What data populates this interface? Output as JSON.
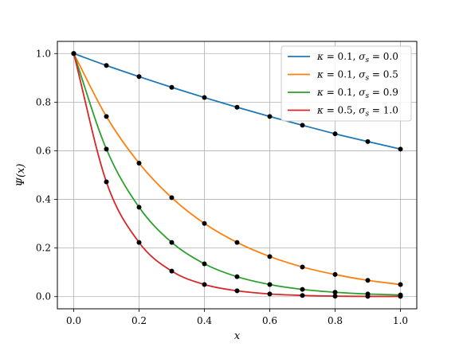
{
  "chart_data": {
    "type": "line",
    "xlabel": "x",
    "ylabel": "Ψ(x)",
    "xlim": [
      -0.05,
      1.05
    ],
    "ylim": [
      -0.05,
      1.05
    ],
    "xticks": [
      0.0,
      0.2,
      0.4,
      0.6,
      0.8,
      1.0
    ],
    "yticks": [
      0.0,
      0.2,
      0.4,
      0.6,
      0.8,
      1.0
    ],
    "xtick_labels": [
      "0.0",
      "0.2",
      "0.4",
      "0.6",
      "0.8",
      "1.0"
    ],
    "ytick_labels": [
      "0.0",
      "0.2",
      "0.4",
      "0.6",
      "0.8",
      "1.0"
    ],
    "grid": true,
    "legend_position": "top-right",
    "marker_x": [
      0.0,
      0.1,
      0.2,
      0.3,
      0.4,
      0.5,
      0.6,
      0.7,
      0.8,
      0.9,
      1.0
    ],
    "series": [
      {
        "name": "κ = 0.1, σs = 0.0",
        "legend": {
          "kappa": "0.1",
          "sigma": "0.0"
        },
        "color": "#1f77b4",
        "marker_y": [
          1.0,
          0.951,
          0.905,
          0.861,
          0.819,
          0.779,
          0.741,
          0.705,
          0.67,
          0.638,
          0.607
        ]
      },
      {
        "name": "κ = 0.1, σs = 0.5",
        "legend": {
          "kappa": "0.1",
          "sigma": "0.5"
        },
        "color": "#ff7f0e",
        "marker_y": [
          1.0,
          0.741,
          0.549,
          0.407,
          0.301,
          0.223,
          0.165,
          0.122,
          0.091,
          0.067,
          0.05
        ]
      },
      {
        "name": "κ = 0.1, σs = 0.9",
        "legend": {
          "kappa": "0.1",
          "sigma": "0.9"
        },
        "color": "#2ca02c",
        "marker_y": [
          1.0,
          0.607,
          0.368,
          0.223,
          0.135,
          0.082,
          0.05,
          0.03,
          0.018,
          0.011,
          0.007
        ]
      },
      {
        "name": "κ = 0.5, σs = 1.0",
        "legend": {
          "kappa": "0.5",
          "sigma": "1.0"
        },
        "color": "#d62728",
        "marker_y": [
          1.0,
          0.472,
          0.223,
          0.105,
          0.05,
          0.024,
          0.011,
          0.005,
          0.002,
          0.001,
          0.001
        ]
      }
    ]
  }
}
